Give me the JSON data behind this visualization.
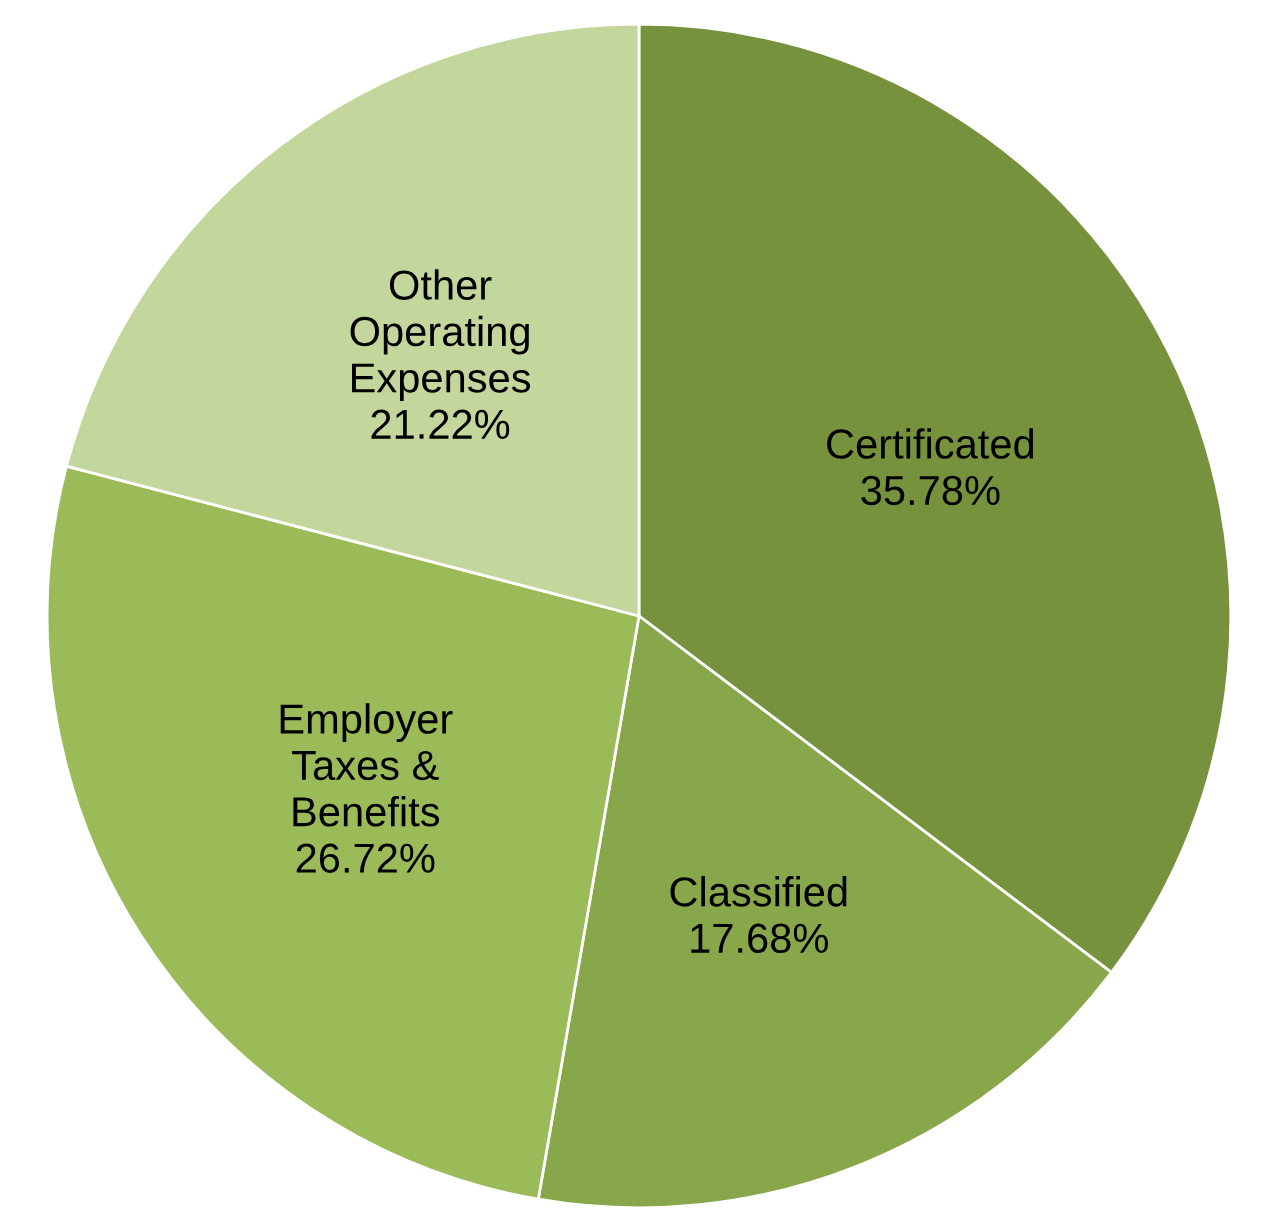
{
  "chart_data": {
    "type": "pie",
    "categories": [
      "Certificated",
      "Classified",
      "Employer\nTaxes &\nBenefits",
      "Other\nOperating\nExpenses"
    ],
    "values": [
      35.78,
      17.68,
      26.72,
      21.22
    ],
    "value_labels": [
      "35.78%",
      "17.68%",
      "26.72%",
      "21.22%"
    ],
    "colors": [
      "#76923c",
      "#88a64a",
      "#9bbb59",
      "#c3d69b"
    ],
    "legend": false
  }
}
